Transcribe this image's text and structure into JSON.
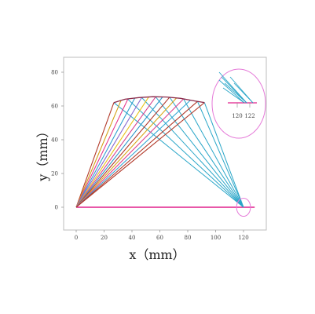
{
  "chart_data": {
    "type": "line",
    "xlabel": "x（mm）",
    "ylabel": "y（mm）",
    "xlim": [
      -10,
      135
    ],
    "ylim": [
      -12,
      88
    ],
    "x_ticks": [
      0,
      20,
      40,
      60,
      80,
      100,
      120
    ],
    "y_ticks": [
      0,
      20,
      40,
      60,
      80
    ],
    "grid": false,
    "base_line": {
      "x": [
        0,
        128
      ],
      "y": [
        0,
        0
      ],
      "color": "#e0208c"
    },
    "outer_arc": [
      [
        27,
        62
      ],
      [
        35,
        64
      ],
      [
        45,
        65
      ],
      [
        55,
        65.5
      ],
      [
        65,
        65.3
      ],
      [
        75,
        64.5
      ],
      [
        85,
        63
      ],
      [
        92,
        62
      ]
    ],
    "origin_rays": [
      {
        "end": [
          27,
          62
        ],
        "color": "#b23a2a"
      },
      {
        "end": [
          32,
          63
        ],
        "color": "#d4a017"
      },
      {
        "end": [
          37,
          64
        ],
        "color": "#e6398c"
      },
      {
        "end": [
          42,
          64.6
        ],
        "color": "#2f9fcf"
      },
      {
        "end": [
          47,
          65
        ],
        "color": "#8a6bd0"
      },
      {
        "end": [
          52,
          65.3
        ],
        "color": "#e7c31a"
      },
      {
        "end": [
          57,
          65.4
        ],
        "color": "#d8428f"
      },
      {
        "end": [
          62,
          65.4
        ],
        "color": "#2e97c9"
      },
      {
        "end": [
          67,
          65.2
        ],
        "color": "#b03a2f"
      },
      {
        "end": [
          72,
          64.8
        ],
        "color": "#d7a71a"
      },
      {
        "end": [
          77,
          64.2
        ],
        "color": "#e04591"
      },
      {
        "end": [
          82,
          63.5
        ],
        "color": "#35a7d4"
      },
      {
        "end": [
          87,
          62.7
        ],
        "color": "#b23a2a"
      },
      {
        "end": [
          92,
          62
        ],
        "color": "#b23a2a"
      }
    ],
    "target_rays": {
      "target": [
        120,
        0
      ],
      "color": "#2aa6c8",
      "starts": [
        [
          27,
          62
        ],
        [
          37,
          64
        ],
        [
          47,
          65
        ],
        [
          57,
          65.4
        ],
        [
          67,
          65.2
        ],
        [
          77,
          64.2
        ],
        [
          87,
          62.7
        ],
        [
          92,
          62
        ]
      ]
    },
    "zoom_circle": {
      "center": [
        120,
        0
      ],
      "radius": 5,
      "color": "#e57ad8"
    },
    "inset": {
      "tick_labels": [
        "120",
        "122"
      ]
    }
  }
}
